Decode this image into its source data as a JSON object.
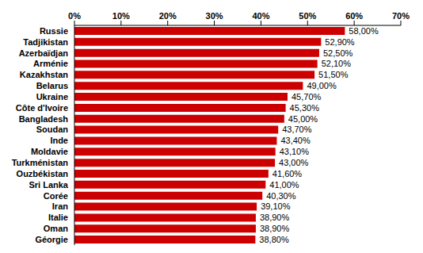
{
  "chart_data": {
    "type": "bar",
    "orientation": "horizontal",
    "categories": [
      "Russie",
      "Tadjikistan",
      "Azerbaïdjan",
      "Arménie",
      "Kazakhstan",
      "Belarus",
      "Ukraine",
      "Côte d'Ivoire",
      "Bangladesh",
      "Soudan",
      "Inde",
      "Moldavie",
      "Turkménistan",
      "Ouzbékistan",
      "Sri Lanka",
      "Corée",
      "Iran",
      "Italie",
      "Oman",
      "Géorgie"
    ],
    "values": [
      58.0,
      52.9,
      52.5,
      52.1,
      51.5,
      49.0,
      45.7,
      45.3,
      45.0,
      43.7,
      43.4,
      43.1,
      43.0,
      41.6,
      41.0,
      40.3,
      39.1,
      38.9,
      38.9,
      38.8
    ],
    "value_labels": [
      "58,00%",
      "52,90%",
      "52,50%",
      "52,10%",
      "51,50%",
      "49,00%",
      "45,70%",
      "45,30%",
      "45,00%",
      "43,70%",
      "43,40%",
      "43,10%",
      "43,00%",
      "41,60%",
      "41,00%",
      "40,30%",
      "39,10%",
      "38,90%",
      "38,90%",
      "38,80%"
    ],
    "color": "#cc0000",
    "xlim": [
      0,
      70
    ],
    "xticks": [
      {
        "value": 0,
        "label": "0%"
      },
      {
        "value": 10,
        "label": "10%"
      },
      {
        "value": 20,
        "label": "20%"
      },
      {
        "value": 30,
        "label": "30%"
      },
      {
        "value": 40,
        "label": "40%"
      },
      {
        "value": 50,
        "label": "50%"
      },
      {
        "value": 60,
        "label": "60%"
      },
      {
        "value": 70,
        "label": "70%"
      }
    ],
    "grid": false,
    "data_labels": true
  }
}
